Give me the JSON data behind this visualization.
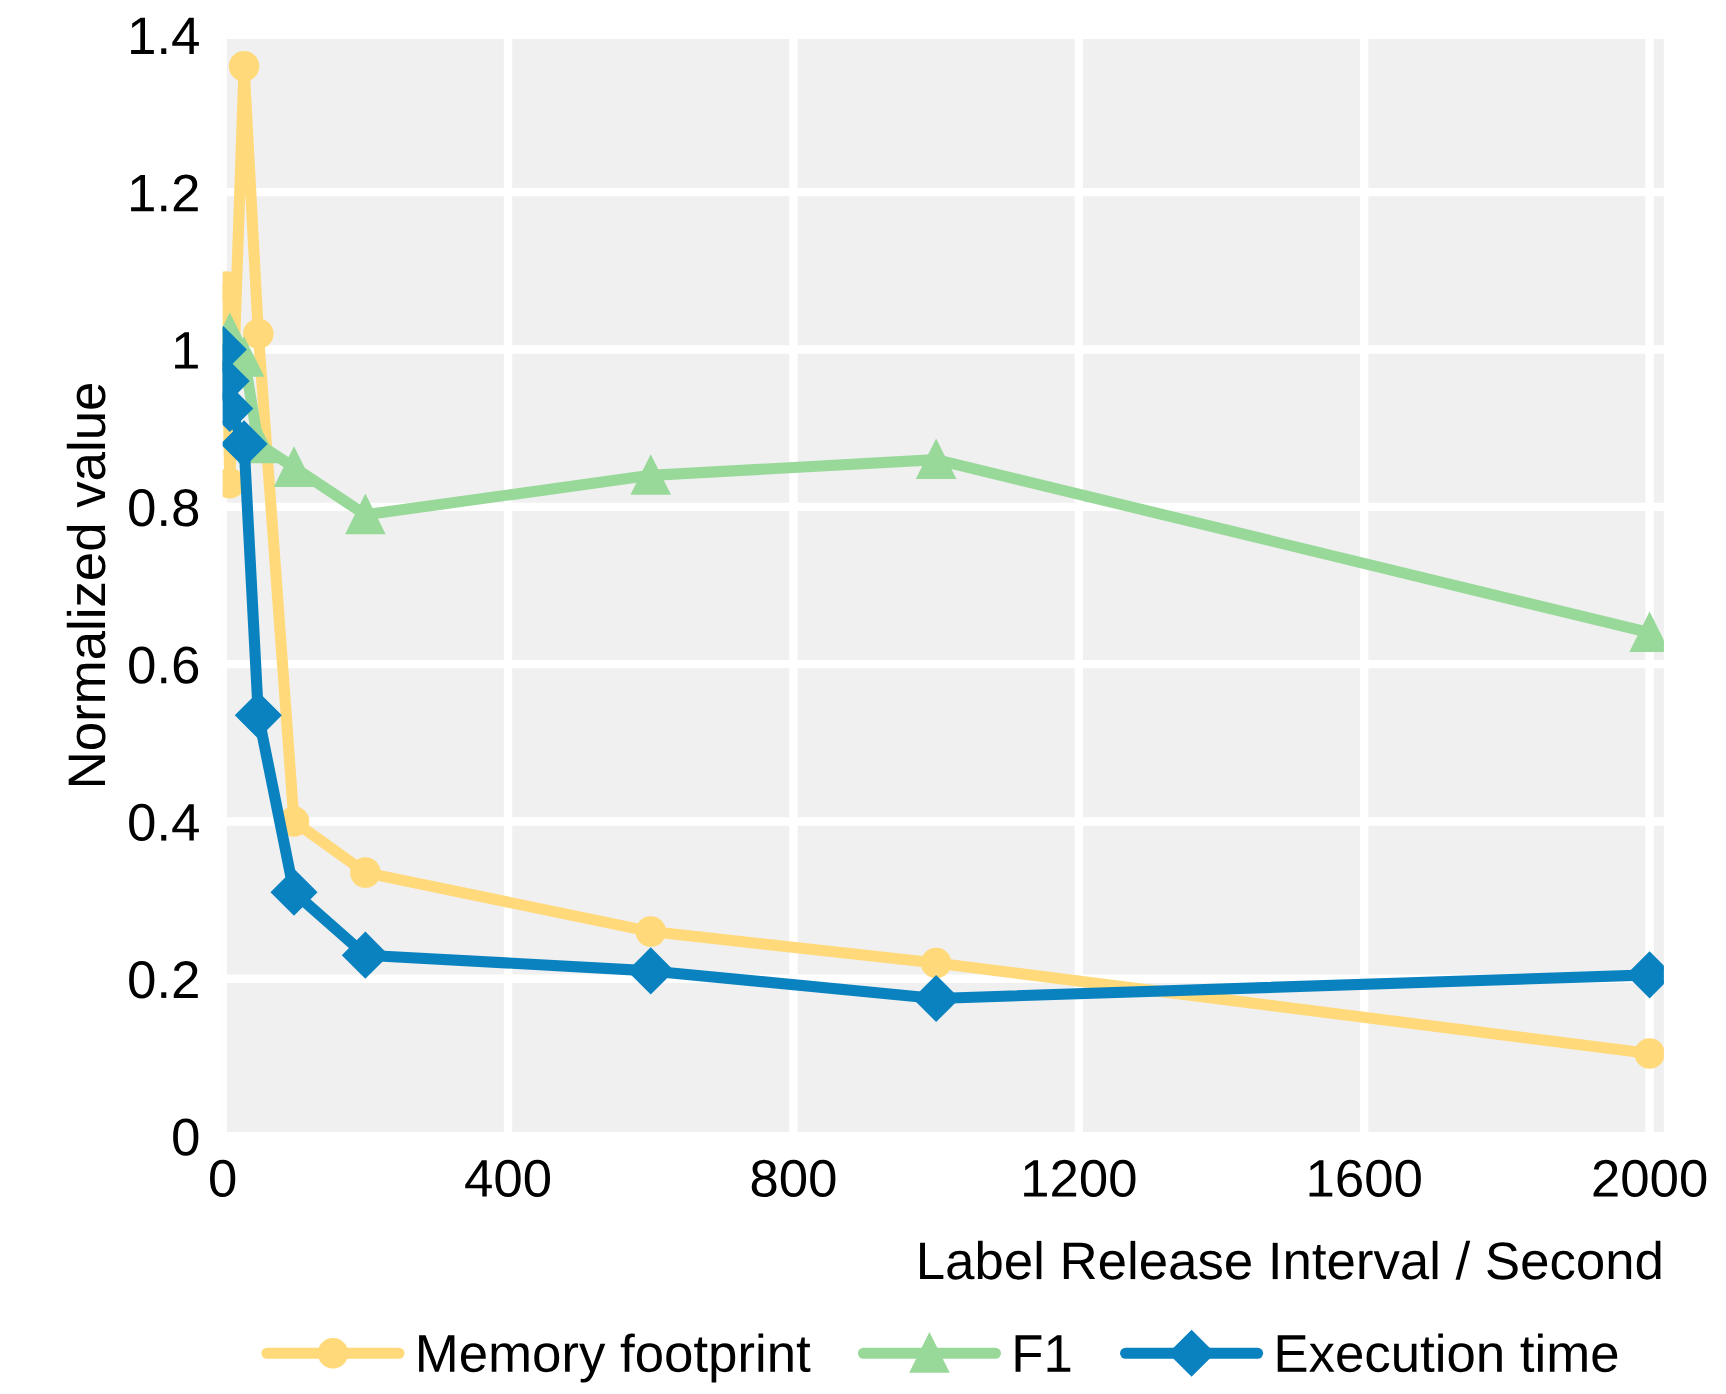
{
  "chart_data": {
    "type": "line",
    "xlabel": "Label Release Interval / Second",
    "ylabel": "Normalized value",
    "xlim": [
      0,
      2020
    ],
    "xticks": [
      0,
      400,
      800,
      1200,
      1600,
      2000
    ],
    "ylim": [
      0,
      1.4
    ],
    "yticks": [
      0,
      0.2,
      0.4,
      0.6,
      0.8,
      1,
      1.2,
      1.4
    ],
    "grid": true,
    "legend": "bottom",
    "series": [
      {
        "name": "Memory footprint",
        "color": "#ffd97a",
        "marker": "circle",
        "x": [
          5,
          10,
          30,
          50,
          100,
          200,
          600,
          1000,
          2000
        ],
        "values": [
          1.08,
          0.83,
          1.36,
          1.02,
          0.4,
          0.335,
          0.26,
          0.22,
          0.105
        ]
      },
      {
        "name": "F1",
        "color": "#98d99a",
        "marker": "triangle",
        "x": [
          10,
          30,
          50,
          100,
          200,
          600,
          1000,
          2000
        ],
        "values": [
          1.02,
          0.99,
          0.88,
          0.85,
          0.79,
          0.84,
          0.86,
          0.64
        ]
      },
      {
        "name": "Execution time",
        "color": "#0a82c0",
        "marker": "diamond",
        "x": [
          1,
          5,
          10,
          30,
          50,
          100,
          200,
          600,
          1000,
          2000
        ],
        "values": [
          1.0,
          0.96,
          0.925,
          0.88,
          0.535,
          0.31,
          0.23,
          0.21,
          0.175,
          0.205
        ]
      }
    ]
  }
}
